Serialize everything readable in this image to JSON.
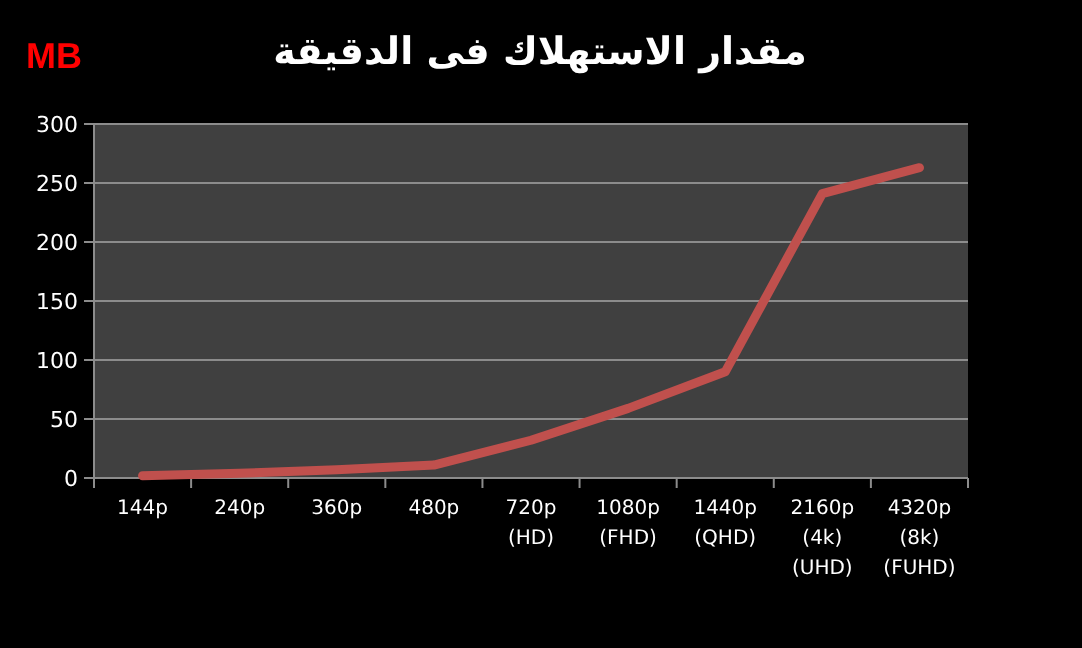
{
  "chart_data": {
    "type": "line",
    "title": "مقدار الاستهلاك فى الدقيقة",
    "ylabel": "MB",
    "categories": [
      "144p",
      "240p",
      "360p",
      "480p",
      "720p\n(HD)",
      "1080p\n(FHD)",
      "1440p\n(QHD)",
      "2160p\n(4k)\n(UHD)",
      "4320p\n(8k)\n(FUHD)"
    ],
    "series": [
      {
        "color": "#c0504d",
        "values": [
          2,
          4,
          7,
          11,
          32,
          59,
          90,
          241,
          263
        ]
      }
    ],
    "ylim": [
      0,
      300
    ],
    "yticks": [
      0,
      50,
      100,
      150,
      200,
      250,
      300
    ],
    "grid": "y",
    "marker": "none",
    "line_style": "solid"
  }
}
